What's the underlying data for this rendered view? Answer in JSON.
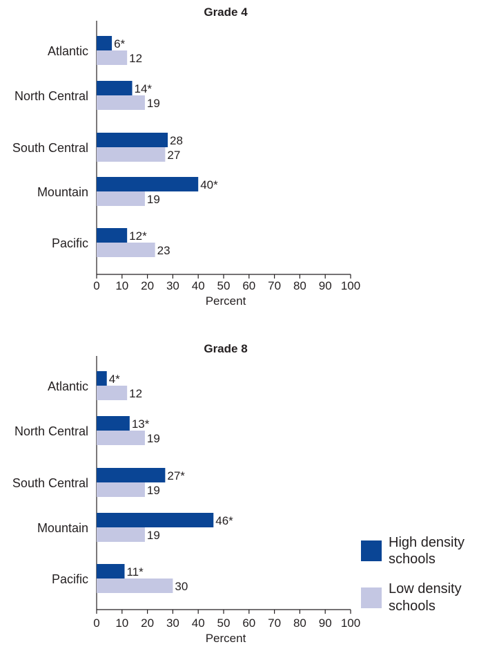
{
  "chart_data": [
    {
      "type": "bar",
      "orientation": "horizontal",
      "title": "Grade 4",
      "categories": [
        "Atlantic",
        "North Central",
        "South Central",
        "Mountain",
        "Pacific"
      ],
      "series": [
        {
          "name": "High density schools",
          "values": [
            6,
            14,
            28,
            40,
            12
          ],
          "labels": [
            "6*",
            "14*",
            "28",
            "40*",
            "12*"
          ]
        },
        {
          "name": "Low density schools",
          "values": [
            12,
            19,
            27,
            19,
            23
          ],
          "labels": [
            "12",
            "19",
            "27",
            "19",
            "23"
          ]
        }
      ],
      "xlabel": "Percent",
      "xlim": [
        0,
        100
      ],
      "xticks": [
        "0",
        "10",
        "20",
        "30",
        "40",
        "50",
        "60",
        "70",
        "80",
        "90",
        "100"
      ],
      "grid": false
    },
    {
      "type": "bar",
      "orientation": "horizontal",
      "title": "Grade 8",
      "categories": [
        "Atlantic",
        "North Central",
        "South Central",
        "Mountain",
        "Pacific"
      ],
      "series": [
        {
          "name": "High density schools",
          "values": [
            4,
            13,
            27,
            46,
            11
          ],
          "labels": [
            "4*",
            "13*",
            "27*",
            "46*",
            "11*"
          ]
        },
        {
          "name": "Low density schools",
          "values": [
            12,
            19,
            19,
            19,
            30
          ],
          "labels": [
            "12",
            "19",
            "19",
            "19",
            "30"
          ]
        }
      ],
      "xlabel": "Percent",
      "xlim": [
        0,
        100
      ],
      "xticks": [
        "0",
        "10",
        "20",
        "30",
        "40",
        "50",
        "60",
        "70",
        "80",
        "90",
        "100"
      ],
      "grid": false
    }
  ],
  "legend": {
    "placement": "bottom-right",
    "items": [
      {
        "label_line1": "High density",
        "label_line2": "schools",
        "color": "#0a4595"
      },
      {
        "label_line1": "Low density",
        "label_line2": "schools",
        "color": "#c4c7e3"
      }
    ]
  },
  "colors": {
    "high": "#0a4595",
    "low": "#c4c7e3",
    "text": "#231f20"
  }
}
